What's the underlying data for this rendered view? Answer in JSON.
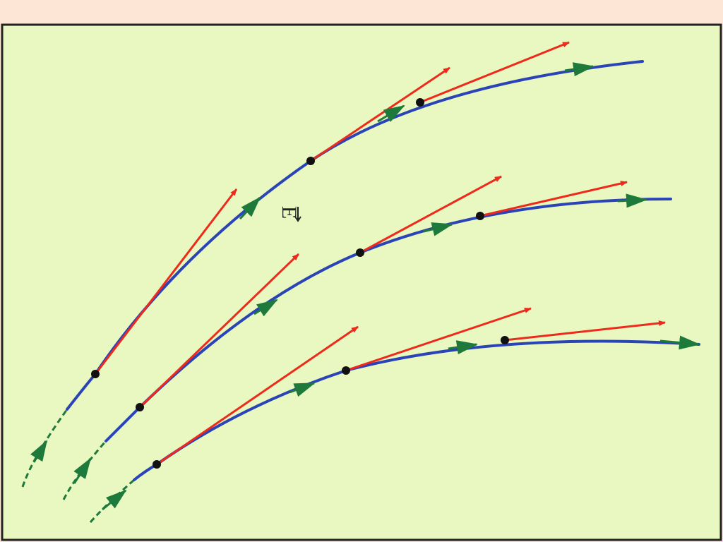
{
  "label": "E"
}
